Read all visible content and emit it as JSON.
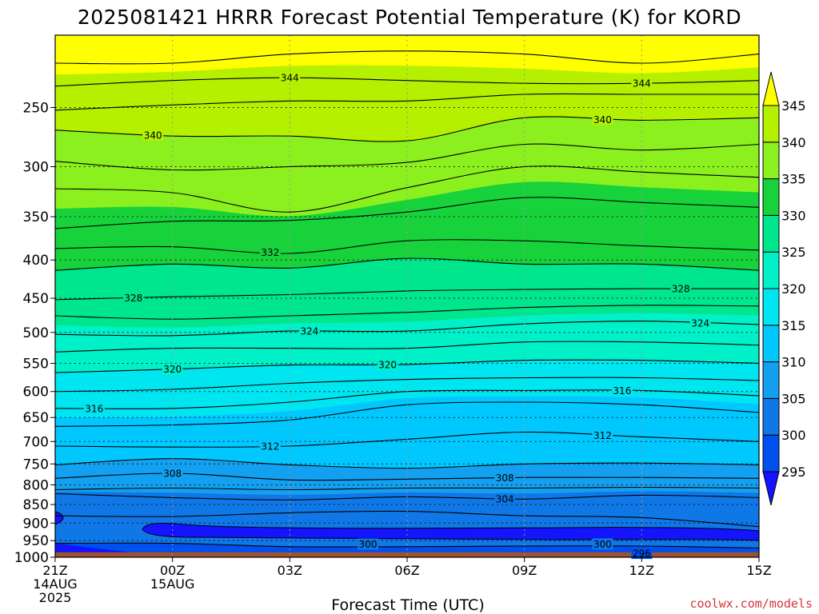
{
  "title": "2025081421 HRRR Forecast Potential Temperature (K) for KORD",
  "credit": "coolwx.com/models",
  "chart_data": {
    "type": "heatmap",
    "title": "2025081421 HRRR Forecast Potential Temperature (K) for KORD",
    "xlabel": "Forecast Time (UTC)",
    "ylabel": "",
    "x_range_hours": [
      0,
      18
    ],
    "y_range_hPa": [
      1000,
      200
    ],
    "y_scale": "log-pressure",
    "grid": "dotted",
    "x_ticks": [
      {
        "hour": 0,
        "lines": [
          "21Z",
          "14AUG",
          "2025"
        ]
      },
      {
        "hour": 3,
        "lines": [
          "00Z",
          "15AUG"
        ]
      },
      {
        "hour": 6,
        "lines": [
          "03Z"
        ]
      },
      {
        "hour": 9,
        "lines": [
          "06Z"
        ]
      },
      {
        "hour": 12,
        "lines": [
          "09Z"
        ]
      },
      {
        "hour": 15,
        "lines": [
          "12Z"
        ]
      },
      {
        "hour": 18,
        "lines": [
          "15Z"
        ]
      }
    ],
    "y_ticks": [
      1000,
      950,
      900,
      850,
      800,
      750,
      700,
      650,
      600,
      550,
      500,
      450,
      400,
      350,
      300,
      250
    ],
    "colorbar": {
      "levels": [
        295,
        300,
        305,
        310,
        315,
        320,
        325,
        330,
        335,
        340,
        345
      ],
      "colors": [
        "#1414ff",
        "#0050f0",
        "#0f78e6",
        "#14a0f0",
        "#00c8ff",
        "#00e6f0",
        "#00f0c8",
        "#00e68c",
        "#18d23c",
        "#8cf01e",
        "#b4f000",
        "#ffff00"
      ],
      "extend": "both"
    },
    "surface_color": "#a0522d",
    "profile_hours": [
      0,
      3,
      6,
      9,
      12,
      15,
      18
    ],
    "profiles": [
      {
        "theta": 295,
        "p": [
          null,
          996,
          998,
          998,
          996,
          996,
          998
        ]
      },
      {
        "theta": 300,
        "p": [
          958,
          958,
          968,
          968,
          966,
          966,
          972
        ]
      },
      {
        "theta": 302,
        "p": [
          880,
          882,
          872,
          868,
          880,
          885,
          910
        ]
      },
      {
        "theta": 304,
        "p": [
          822,
          832,
          838,
          830,
          836,
          826,
          832
        ]
      },
      {
        "theta": 306,
        "p": [
          812,
          808,
          812,
          808,
          808,
          806,
          808
        ]
      },
      {
        "theta": 308,
        "p": [
          784,
          772,
          788,
          786,
          782,
          782,
          784
        ]
      },
      {
        "theta": 310,
        "p": [
          752,
          738,
          752,
          760,
          750,
          748,
          752
        ]
      },
      {
        "theta": 312,
        "p": [
          710,
          712,
          710,
          695,
          680,
          690,
          700
        ]
      },
      {
        "theta": 314,
        "p": [
          668,
          665,
          655,
          625,
          620,
          625,
          640
        ]
      },
      {
        "theta": 316,
        "p": [
          632,
          632,
          620,
          600,
          598,
          598,
          608
        ]
      },
      {
        "theta": 318,
        "p": [
          600,
          596,
          585,
          578,
          575,
          575,
          580
        ]
      },
      {
        "theta": 320,
        "p": [
          566,
          560,
          553,
          552,
          545,
          545,
          550
        ]
      },
      {
        "theta": 322,
        "p": [
          531,
          525,
          525,
          525,
          515,
          515,
          520
        ]
      },
      {
        "theta": 324,
        "p": [
          503,
          505,
          498,
          498,
          487,
          483,
          488
        ]
      },
      {
        "theta": 326,
        "p": [
          475,
          480,
          475,
          470,
          463,
          460,
          461
        ]
      },
      {
        "theta": 328,
        "p": [
          452,
          448,
          445,
          440,
          438,
          437,
          437
        ]
      },
      {
        "theta": 330,
        "p": [
          413,
          405,
          410,
          398,
          405,
          405,
          413
        ]
      },
      {
        "theta": 332,
        "p": [
          386,
          384,
          392,
          377,
          377,
          383,
          388
        ]
      },
      {
        "theta": 334,
        "p": [
          363,
          355,
          354,
          345,
          330,
          335,
          340
        ]
      },
      {
        "theta": 336,
        "p": [
          321,
          325,
          345,
          320,
          300,
          305,
          310
        ]
      },
      {
        "theta": 338,
        "p": [
          295,
          303,
          300,
          296,
          280,
          285,
          280
        ]
      },
      {
        "theta": 340,
        "p": [
          268,
          273,
          273,
          277,
          258,
          260,
          258
        ]
      },
      {
        "theta": 342,
        "p": [
          252,
          248,
          245,
          245,
          240,
          240,
          240
        ]
      },
      {
        "theta": 344,
        "p": [
          234,
          230,
          228,
          230,
          232,
          232,
          230
        ]
      },
      {
        "theta": 346,
        "p": [
          218,
          218,
          212,
          210,
          212,
          218,
          212
        ]
      }
    ],
    "contour_labels": [
      {
        "hour": 6,
        "value": 344
      },
      {
        "hour": 15,
        "value": 344
      },
      {
        "hour": 2.5,
        "value": 340
      },
      {
        "hour": 14,
        "value": 340
      },
      {
        "hour": 5.5,
        "value": 332
      },
      {
        "hour": 16,
        "value": 328
      },
      {
        "hour": 2,
        "value": 328
      },
      {
        "hour": 6.5,
        "value": 324
      },
      {
        "hour": 16.5,
        "value": 324
      },
      {
        "hour": 3,
        "value": 320
      },
      {
        "hour": 8.5,
        "value": 320
      },
      {
        "hour": 1,
        "value": 316
      },
      {
        "hour": 14.5,
        "value": 316
      },
      {
        "hour": 5.5,
        "value": 312
      },
      {
        "hour": 14,
        "value": 312
      },
      {
        "hour": 3,
        "value": 308
      },
      {
        "hour": 11.5,
        "value": 308
      },
      {
        "hour": 11.5,
        "value": 304
      },
      {
        "hour": 8,
        "value": 300
      },
      {
        "hour": 14,
        "value": 300
      },
      {
        "hour": 15,
        "value": 296
      }
    ]
  }
}
